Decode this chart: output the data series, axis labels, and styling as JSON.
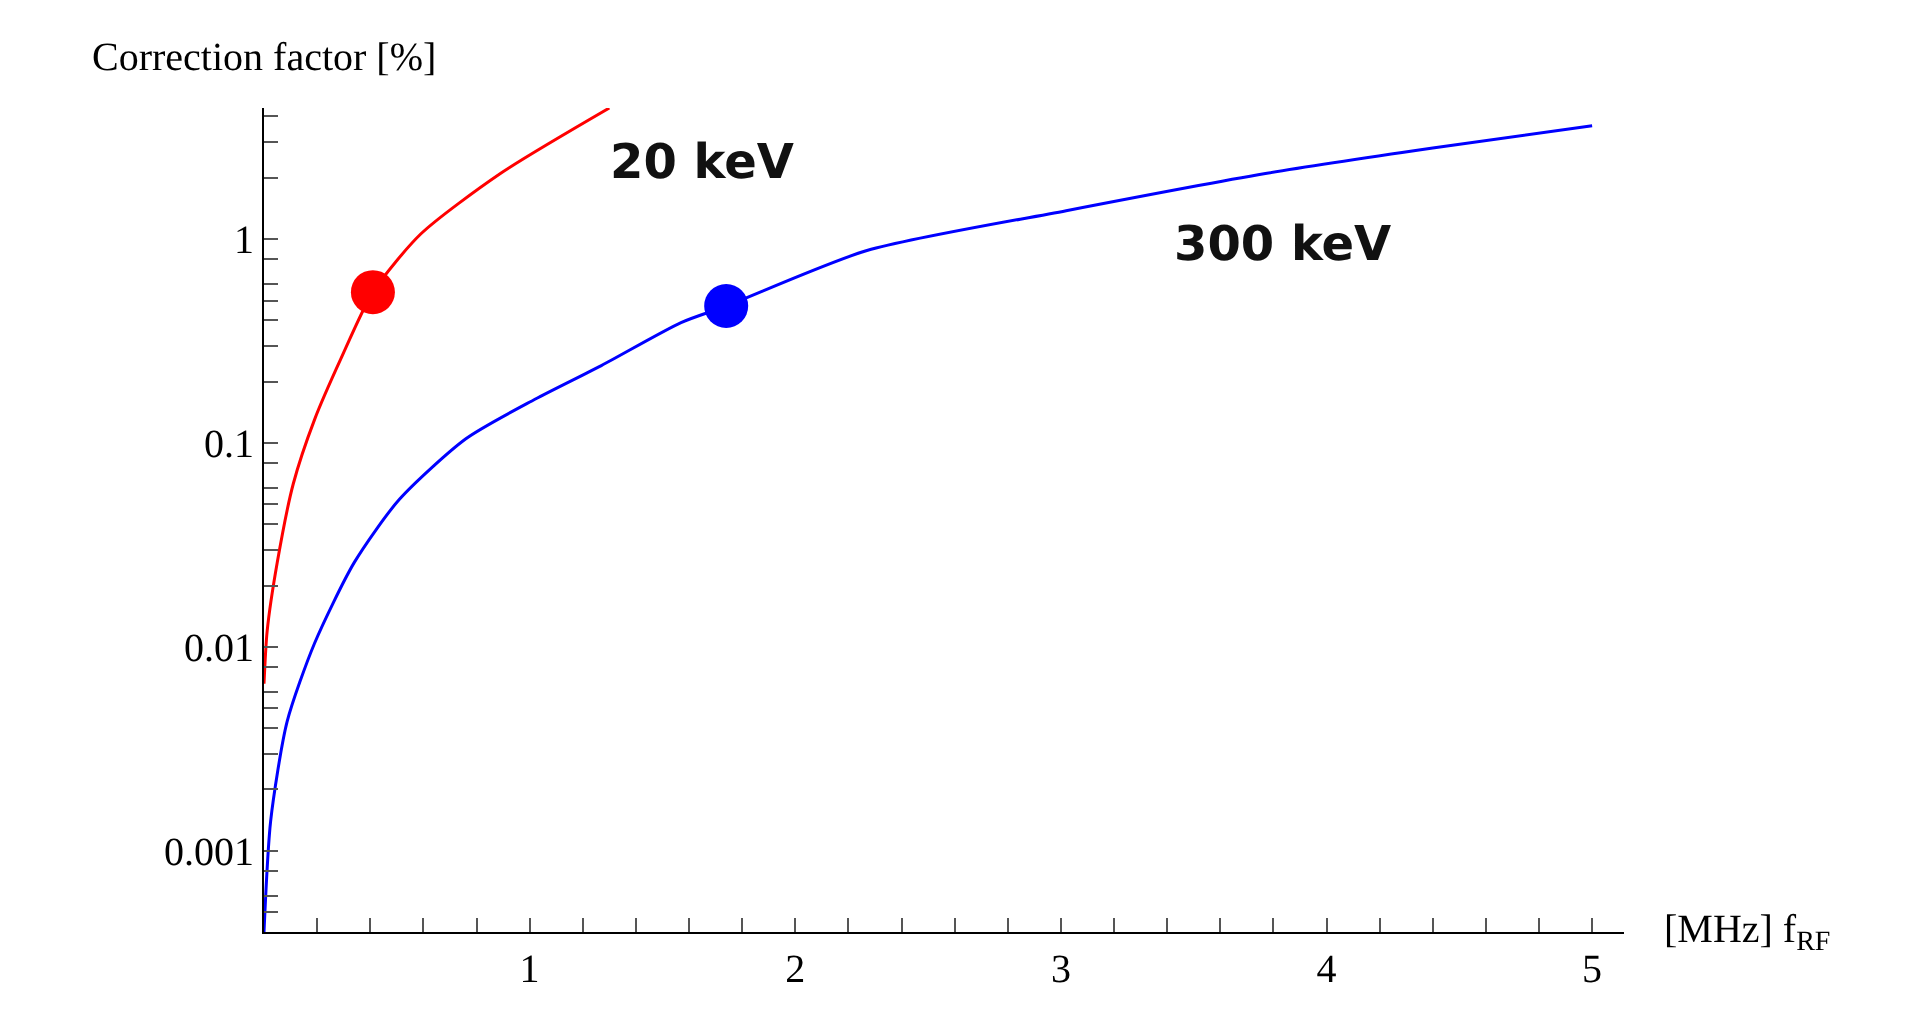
{
  "chart_data": {
    "type": "line",
    "ylabel": "Correction factor [%]",
    "xlabel": "[MHz] f$_{RF}$",
    "log": "y",
    "grid": false,
    "legend": false,
    "line_style": "solid",
    "xlim": [
      0,
      5.12
    ],
    "ylim": [
      0.0004,
      4.4
    ],
    "xticks": [
      {
        "value": 0.2,
        "label": null
      },
      {
        "value": 0.4,
        "label": null
      },
      {
        "value": 0.6,
        "label": null
      },
      {
        "value": 0.8,
        "label": null
      },
      1,
      {
        "value": 1.2,
        "label": null
      },
      {
        "value": 1.4,
        "label": null
      },
      {
        "value": 1.6,
        "label": null
      },
      {
        "value": 1.8,
        "label": null
      },
      2,
      {
        "value": 2.2,
        "label": null
      },
      {
        "value": 2.4,
        "label": null
      },
      {
        "value": 2.6,
        "label": null
      },
      {
        "value": 2.8,
        "label": null
      },
      3,
      {
        "value": 3.2,
        "label": null
      },
      {
        "value": 3.4,
        "label": null
      },
      {
        "value": 3.6,
        "label": null
      },
      {
        "value": 3.8,
        "label": null
      },
      4,
      {
        "value": 4.2,
        "label": null
      },
      {
        "value": 4.4,
        "label": null
      },
      {
        "value": 4.6,
        "label": null
      },
      {
        "value": 4.8,
        "label": null
      },
      5
    ],
    "yticks": [
      {
        "value": 0.0005,
        "label": null
      },
      {
        "value": 0.0006,
        "label": null
      },
      {
        "value": 0.0008,
        "label": null
      },
      0.001,
      {
        "value": 0.002,
        "label": null
      },
      {
        "value": 0.003,
        "label": null
      },
      {
        "value": 0.004,
        "label": null
      },
      {
        "value": 0.005,
        "label": null
      },
      {
        "value": 0.006,
        "label": null
      },
      {
        "value": 0.008,
        "label": null
      },
      0.01,
      {
        "value": 0.02,
        "label": null
      },
      {
        "value": 0.03,
        "label": null
      },
      {
        "value": 0.04,
        "label": null
      },
      {
        "value": 0.05,
        "label": null
      },
      {
        "value": 0.06,
        "label": null
      },
      {
        "value": 0.08,
        "label": null
      },
      0.1,
      {
        "value": 0.2,
        "label": null
      },
      {
        "value": 0.3,
        "label": null
      },
      {
        "value": 0.4,
        "label": null
      },
      {
        "value": 0.5,
        "label": null
      },
      {
        "value": 0.6,
        "label": null
      },
      {
        "value": 0.8,
        "label": null
      },
      1,
      {
        "value": 2,
        "label": null
      },
      {
        "value": 3,
        "label": null
      },
      {
        "value": 4,
        "label": null
      }
    ],
    "series": [
      {
        "name": "20 keV",
        "color": "#ff0000",
        "marker": "none",
        "x": [
          0,
          0.012,
          0.05,
          0.11,
          0.19,
          0.29,
          0.41,
          0.59,
          0.89,
          1.3
        ],
        "values": [
          0.0066,
          0.012,
          0.026,
          0.063,
          0.13,
          0.26,
          0.55,
          1.06,
          2.1,
          4.4
        ]
      },
      {
        "name": "300 keV",
        "color": "#0000ff",
        "marker": "none",
        "x": [
          0,
          0.025,
          0.087,
          0.19,
          0.34,
          0.51,
          0.76,
          1.02,
          1.27,
          1.57,
          1.74,
          2.27,
          3.02,
          3.77,
          4.4,
          5.0
        ],
        "values": [
          0.0004,
          0.0014,
          0.0043,
          0.0104,
          0.026,
          0.053,
          0.105,
          0.164,
          0.24,
          0.39,
          0.47,
          0.88,
          1.38,
          2.1,
          2.8,
          3.6
        ]
      },
      {
        "type": "scatter",
        "color": "#ff0000",
        "marker": "circle",
        "x": [
          0.41
        ],
        "values": [
          0.55
        ]
      },
      {
        "type": "scatter",
        "color": "#0000ff",
        "marker": "circle",
        "x": [
          1.74
        ],
        "values": [
          0.47
        ]
      }
    ]
  }
}
